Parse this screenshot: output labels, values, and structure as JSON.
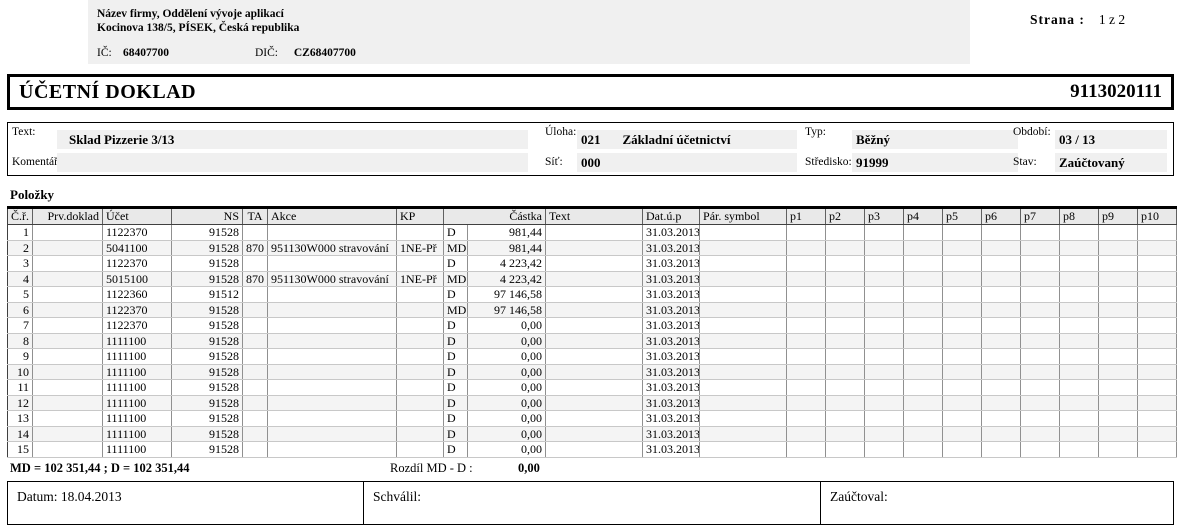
{
  "company": {
    "line1": "Název firmy, Oddělení vývoje aplikací",
    "line2": "Kocinova 138/5, PÍSEK, Česká republika",
    "ic_label": "IČ:",
    "ic_value": "68407700",
    "dic_label": "DIČ:",
    "dic_value": "CZ68407700"
  },
  "page_info": {
    "label": "Strana :",
    "value": "1 z 2"
  },
  "title_bar": {
    "title": "ÚČETNÍ DOKLAD",
    "doc_number": "9113020111"
  },
  "info": {
    "text_label": "Text:",
    "text_value": "Sklad Pizzerie 3/13",
    "komentar_label": "Komentář:",
    "komentar_value": "",
    "uloha_label": "Úloha:",
    "uloha_value": "021",
    "uloha_name": "Základní účetnictví",
    "sit_label": "Síť:",
    "sit_value": "000",
    "sit_name": "",
    "typ_label": "Typ:",
    "typ_value": "Běžný",
    "stredisko_label": "Středisko:",
    "stredisko_value": "91999",
    "obdobi_label": "Období:",
    "obdobi_value": "03 / 13",
    "stav_label": "Stav:",
    "stav_value": "Zaúčtovaný"
  },
  "items_label": "Položky",
  "table": {
    "headers": [
      "Č.ř.",
      "Prv.doklad",
      "Účet",
      "NS",
      "TA",
      "Akce",
      "KP",
      "Částka",
      "Text",
      "Dat.ú.p",
      "Pár. symbol",
      "p1",
      "p2",
      "p3",
      "p4",
      "p5",
      "p6",
      "p7",
      "p8",
      "p9",
      "p10"
    ],
    "rows": [
      {
        "cr": "1",
        "prv": "",
        "ucet": "1122370",
        "ns": "91528",
        "ta": "",
        "akce": "",
        "kp": "",
        "dm": "D",
        "castka": "981,44",
        "text": "",
        "datup": "31.03.2013",
        "par": ""
      },
      {
        "cr": "2",
        "prv": "",
        "ucet": "5041100",
        "ns": "91528",
        "ta": "870",
        "akce": "951130W000 stravování",
        "kp": "1NE-Př",
        "dm": "MD",
        "castka": "981,44",
        "text": "",
        "datup": "31.03.2013",
        "par": ""
      },
      {
        "cr": "3",
        "prv": "",
        "ucet": "1122370",
        "ns": "91528",
        "ta": "",
        "akce": "",
        "kp": "",
        "dm": "D",
        "castka": "4 223,42",
        "text": "",
        "datup": "31.03.2013",
        "par": ""
      },
      {
        "cr": "4",
        "prv": "",
        "ucet": "5015100",
        "ns": "91528",
        "ta": "870",
        "akce": "951130W000 stravování",
        "kp": "1NE-Př",
        "dm": "MD",
        "castka": "4 223,42",
        "text": "",
        "datup": "31.03.2013",
        "par": ""
      },
      {
        "cr": "5",
        "prv": "",
        "ucet": "1122360",
        "ns": "91512",
        "ta": "",
        "akce": "",
        "kp": "",
        "dm": "D",
        "castka": "97 146,58",
        "text": "",
        "datup": "31.03.2013",
        "par": ""
      },
      {
        "cr": "6",
        "prv": "",
        "ucet": "1122370",
        "ns": "91528",
        "ta": "",
        "akce": "",
        "kp": "",
        "dm": "MD",
        "castka": "97 146,58",
        "text": "",
        "datup": "31.03.2013",
        "par": ""
      },
      {
        "cr": "7",
        "prv": "",
        "ucet": "1122370",
        "ns": "91528",
        "ta": "",
        "akce": "",
        "kp": "",
        "dm": "D",
        "castka": "0,00",
        "text": "",
        "datup": "31.03.2013",
        "par": ""
      },
      {
        "cr": "8",
        "prv": "",
        "ucet": "1111100",
        "ns": "91528",
        "ta": "",
        "akce": "",
        "kp": "",
        "dm": "D",
        "castka": "0,00",
        "text": "",
        "datup": "31.03.2013",
        "par": ""
      },
      {
        "cr": "9",
        "prv": "",
        "ucet": "1111100",
        "ns": "91528",
        "ta": "",
        "akce": "",
        "kp": "",
        "dm": "D",
        "castka": "0,00",
        "text": "",
        "datup": "31.03.2013",
        "par": ""
      },
      {
        "cr": "10",
        "prv": "",
        "ucet": "1111100",
        "ns": "91528",
        "ta": "",
        "akce": "",
        "kp": "",
        "dm": "D",
        "castka": "0,00",
        "text": "",
        "datup": "31.03.2013",
        "par": ""
      },
      {
        "cr": "11",
        "prv": "",
        "ucet": "1111100",
        "ns": "91528",
        "ta": "",
        "akce": "",
        "kp": "",
        "dm": "D",
        "castka": "0,00",
        "text": "",
        "datup": "31.03.2013",
        "par": ""
      },
      {
        "cr": "12",
        "prv": "",
        "ucet": "1111100",
        "ns": "91528",
        "ta": "",
        "akce": "",
        "kp": "",
        "dm": "D",
        "castka": "0,00",
        "text": "",
        "datup": "31.03.2013",
        "par": ""
      },
      {
        "cr": "13",
        "prv": "",
        "ucet": "1111100",
        "ns": "91528",
        "ta": "",
        "akce": "",
        "kp": "",
        "dm": "D",
        "castka": "0,00",
        "text": "",
        "datup": "31.03.2013",
        "par": ""
      },
      {
        "cr": "14",
        "prv": "",
        "ucet": "1111100",
        "ns": "91528",
        "ta": "",
        "akce": "",
        "kp": "",
        "dm": "D",
        "castka": "0,00",
        "text": "",
        "datup": "31.03.2013",
        "par": ""
      },
      {
        "cr": "15",
        "prv": "",
        "ucet": "1111100",
        "ns": "91528",
        "ta": "",
        "akce": "",
        "kp": "",
        "dm": "D",
        "castka": "0,00",
        "text": "",
        "datup": "31.03.2013",
        "par": ""
      }
    ]
  },
  "summary": {
    "md_d_totals": "MD = 102 351,44  ;  D = 102 351,44",
    "rozdil_label": "Rozdíl MD - D  :",
    "rozdil_value": "0,00"
  },
  "signatures": {
    "datum": "Datum: 18.04.2013",
    "schvalil": "Schválil:",
    "zauctoval": "Zaúčtoval:"
  },
  "colors": {
    "field_gray": "#f0f0f0",
    "header_gray": "#e9e9e9",
    "alt_row": "#f4f4f4",
    "border_black": "#000000"
  }
}
